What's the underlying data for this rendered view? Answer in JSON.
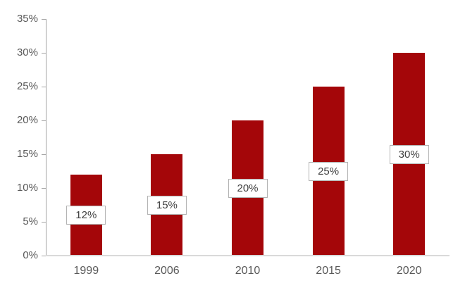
{
  "chart_data": {
    "type": "bar",
    "title": "",
    "xlabel": "",
    "ylabel": "",
    "categories": [
      "1999",
      "2006",
      "2010",
      "2015",
      "2020"
    ],
    "values": [
      12,
      15,
      20,
      25,
      30
    ],
    "bar_labels": [
      "12%",
      "15%",
      "20%",
      "25%",
      "30%"
    ],
    "bar_label_position": "inside-center",
    "ylim": [
      0,
      35
    ],
    "y_tick_step": 5,
    "y_tick_labels": [
      "0%",
      "5%",
      "10%",
      "15%",
      "20%",
      "25%",
      "30%",
      "35%"
    ],
    "grid": false,
    "legend": false,
    "colors": {
      "bar": "#a40609",
      "axis_text": "#595959",
      "data_label_text": "#404040",
      "data_label_border": "#b3b3b3",
      "data_label_bg": "#ffffff",
      "y_axis_line": "#a6a6a6",
      "x_axis_line": "#d9d9d9",
      "background": "#ffffff"
    }
  }
}
